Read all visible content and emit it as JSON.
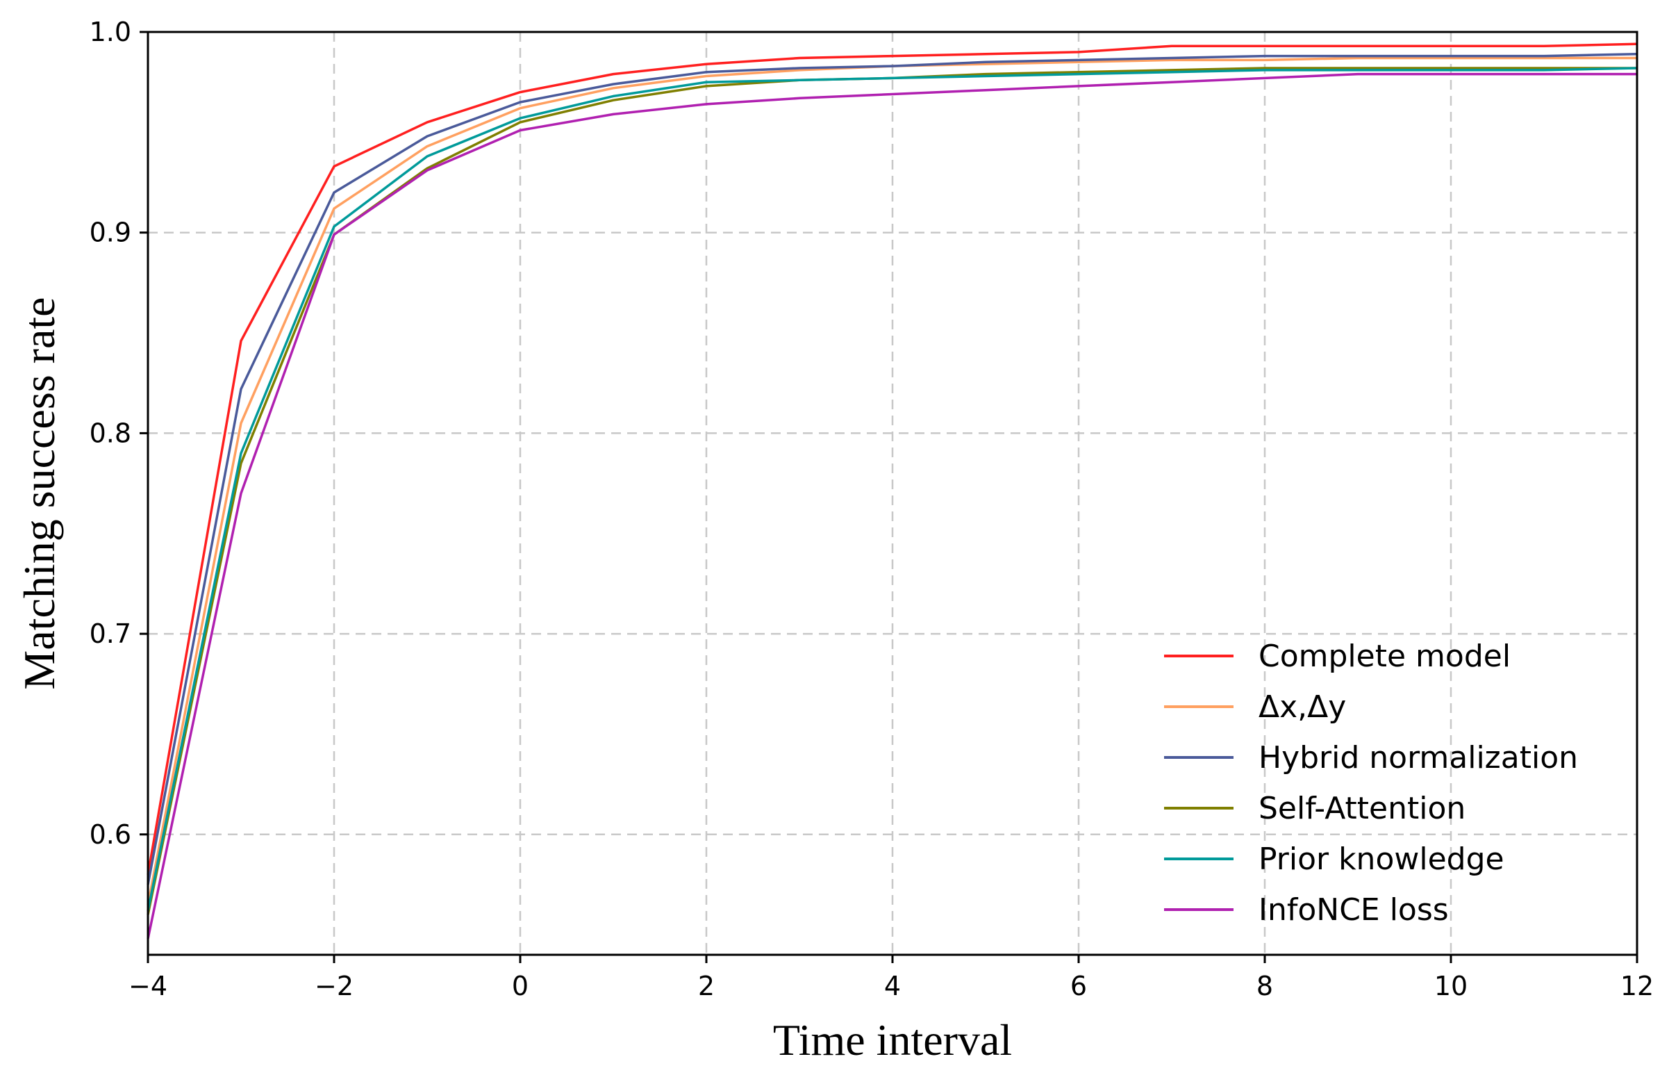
{
  "chart_data": {
    "type": "line",
    "xlabel": "Time interval",
    "ylabel": "Matching success rate",
    "xlim": [
      -4,
      12
    ],
    "ylim": [
      0.54,
      1.0
    ],
    "xticks": [
      -4,
      -2,
      0,
      2,
      4,
      6,
      8,
      10,
      12
    ],
    "xtick_labels": [
      "−4",
      "−2",
      "0",
      "2",
      "4",
      "6",
      "8",
      "10",
      "12"
    ],
    "yticks": [
      0.6,
      0.7,
      0.8,
      0.9,
      1.0
    ],
    "ytick_labels": [
      "0.6",
      "0.7",
      "0.8",
      "0.9",
      "1.0"
    ],
    "grid": true,
    "legend_position": "lower-right",
    "x": [
      -4,
      -3,
      -2,
      -1,
      0,
      1,
      2,
      3,
      4,
      5,
      6,
      7,
      8,
      9,
      10,
      11,
      12
    ],
    "series": [
      {
        "name": "Complete model",
        "color": "#ff1f1f",
        "values": [
          0.58,
          0.846,
          0.933,
          0.955,
          0.97,
          0.979,
          0.984,
          0.987,
          0.988,
          0.989,
          0.99,
          0.993,
          0.993,
          0.993,
          0.993,
          0.993,
          0.994
        ]
      },
      {
        "name": "Δx,Δy",
        "color": "#ffa060",
        "values": [
          0.565,
          0.805,
          0.912,
          0.943,
          0.962,
          0.972,
          0.978,
          0.981,
          0.983,
          0.984,
          0.985,
          0.986,
          0.986,
          0.987,
          0.987,
          0.987,
          0.987
        ]
      },
      {
        "name": "Hybrid normalization",
        "color": "#4a5a9a",
        "values": [
          0.575,
          0.822,
          0.92,
          0.948,
          0.965,
          0.974,
          0.98,
          0.982,
          0.983,
          0.985,
          0.986,
          0.987,
          0.988,
          0.988,
          0.988,
          0.988,
          0.989
        ]
      },
      {
        "name": "Self-Attention",
        "color": "#7f7f00",
        "values": [
          0.56,
          0.785,
          0.899,
          0.932,
          0.955,
          0.966,
          0.973,
          0.976,
          0.977,
          0.979,
          0.98,
          0.981,
          0.982,
          0.982,
          0.982,
          0.982,
          0.982
        ]
      },
      {
        "name": "Prior knowledge",
        "color": "#009a9a",
        "values": [
          0.562,
          0.79,
          0.903,
          0.938,
          0.957,
          0.968,
          0.975,
          0.976,
          0.977,
          0.978,
          0.979,
          0.98,
          0.981,
          0.981,
          0.981,
          0.981,
          0.982
        ]
      },
      {
        "name": "InfoNCE loss",
        "color": "#b020b0",
        "values": [
          0.548,
          0.77,
          0.899,
          0.931,
          0.951,
          0.959,
          0.964,
          0.967,
          0.969,
          0.971,
          0.973,
          0.975,
          0.977,
          0.979,
          0.979,
          0.979,
          0.979
        ]
      }
    ]
  }
}
